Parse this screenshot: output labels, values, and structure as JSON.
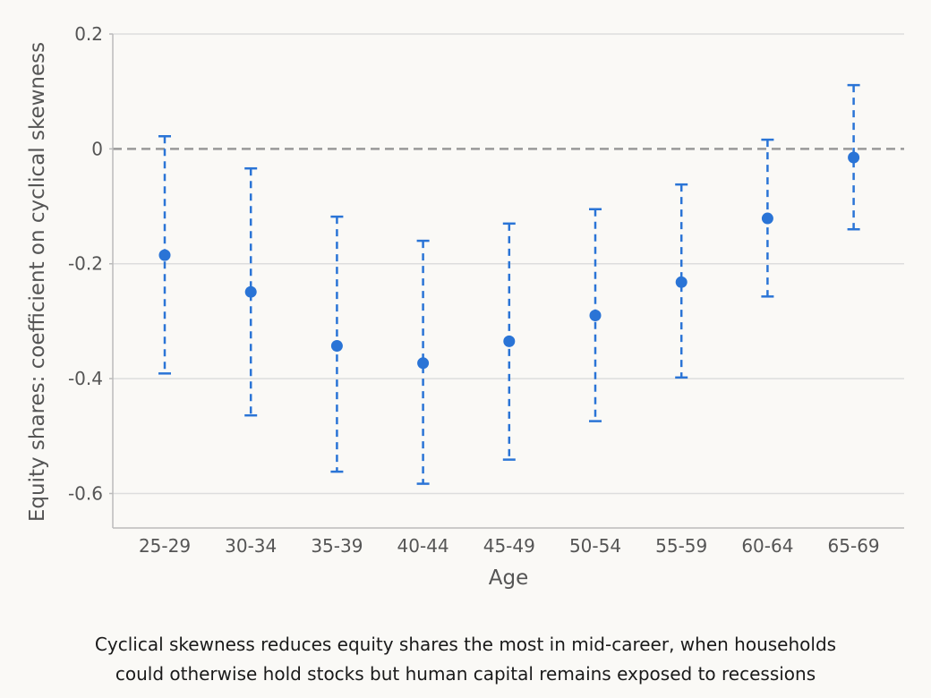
{
  "chart_data": {
    "type": "scatter",
    "title": "",
    "xlabel": "Age",
    "ylabel": "Equity shares: coefficient on cyclical skewness",
    "categories": [
      "25-29",
      "30-34",
      "35-39",
      "40-44",
      "45-49",
      "50-54",
      "55-59",
      "60-64",
      "65-69"
    ],
    "series": [
      {
        "values": [
          -0.185,
          -0.249,
          -0.343,
          -0.373,
          -0.335,
          -0.29,
          -0.232,
          -0.121,
          -0.015
        ],
        "ci_lower": [
          -0.391,
          -0.464,
          -0.562,
          -0.583,
          -0.541,
          -0.474,
          -0.398,
          -0.257,
          -0.14
        ],
        "ci_upper": [
          0.022,
          -0.034,
          -0.118,
          -0.16,
          -0.13,
          -0.105,
          -0.062,
          0.016,
          0.111
        ]
      }
    ],
    "ylim": [
      -0.66,
      0.2
    ],
    "yticks": [
      0.2,
      0,
      -0.2,
      -0.4,
      -0.6
    ],
    "ytick_labels": [
      "0.2",
      "0",
      "-0.2",
      "-0.4",
      "-0.6"
    ],
    "reference_line": 0,
    "grid": "horizontal",
    "colors": {
      "points": "#2a74d6",
      "reference_line": "#999999",
      "grid": "#dddddd",
      "axis": "#bbbbbb",
      "text": "#555555"
    }
  },
  "caption": {
    "line1": "Cyclical skewness reduces equity shares the most in mid-career, when households",
    "line2": "could otherwise hold stocks but human capital remains exposed to recessions"
  }
}
